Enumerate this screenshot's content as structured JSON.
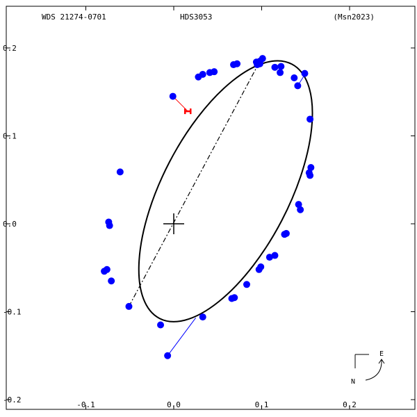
{
  "header": {
    "left": "WDS 21274-0701",
    "center": "HDS3053",
    "right": "(Msn2023)"
  },
  "compass": {
    "east_label": "E",
    "north_label": "N"
  },
  "chart_data": {
    "type": "scatter",
    "title": "",
    "xlabel": "",
    "ylabel": "",
    "xlim": [
      -0.2,
      0.28
    ],
    "ylim": [
      -0.2,
      0.2
    ],
    "x_ticks": [
      -0.1,
      0.0,
      0.1,
      0.2
    ],
    "x_tick_labels": [
      "-0.1",
      "0.0",
      "0.1",
      "0.2"
    ],
    "y_ticks": [
      0.2,
      0.1,
      0.0,
      -0.1,
      -0.2
    ],
    "y_tick_labels": [
      "0.2",
      "0.1",
      "0.0",
      "-0.1",
      "-0.2"
    ],
    "grid": false,
    "orbit_ellipse": {
      "center": [
        0.059,
        0.037
      ],
      "semi_major": 0.163,
      "semi_minor": 0.072,
      "tilt_deg": 62.5,
      "color": "#000000"
    },
    "line_of_apsides": {
      "from": [
        -0.051,
        -0.094
      ],
      "to": [
        0.097,
        0.183
      ],
      "color": "#000000"
    },
    "primary_star": [
      0.0,
      0.0
    ],
    "observations": {
      "color": "#0000ff",
      "points": [
        [
          0.101,
          0.188
        ],
        [
          0.098,
          0.185
        ],
        [
          0.094,
          0.184
        ],
        [
          0.098,
          0.182
        ],
        [
          0.115,
          0.178
        ],
        [
          0.122,
          0.179
        ],
        [
          0.121,
          0.172
        ],
        [
          0.137,
          0.166
        ],
        [
          0.149,
          0.171
        ],
        [
          0.141,
          0.157
        ],
        [
          0.155,
          0.119
        ],
        [
          0.156,
          0.064
        ],
        [
          0.154,
          0.058
        ],
        [
          0.155,
          0.055
        ],
        [
          0.142,
          0.022
        ],
        [
          0.144,
          0.016
        ],
        [
          0.128,
          -0.011
        ],
        [
          0.126,
          -0.012
        ],
        [
          0.115,
          -0.036
        ],
        [
          0.109,
          -0.038
        ],
        [
          0.099,
          -0.049
        ],
        [
          0.097,
          -0.052
        ],
        [
          0.083,
          -0.069
        ],
        [
          0.069,
          -0.084
        ],
        [
          0.066,
          -0.085
        ],
        [
          0.033,
          -0.106
        ],
        [
          -0.015,
          -0.115
        ],
        [
          -0.051,
          -0.094
        ],
        [
          -0.071,
          -0.065
        ],
        [
          -0.076,
          -0.052
        ],
        [
          -0.079,
          -0.054
        ],
        [
          -0.073,
          -0.002
        ],
        [
          -0.074,
          0.002
        ],
        [
          -0.061,
          0.059
        ],
        [
          -0.001,
          0.145
        ],
        [
          0.028,
          0.167
        ],
        [
          0.033,
          0.17
        ],
        [
          0.041,
          0.172
        ],
        [
          0.046,
          0.173
        ],
        [
          0.068,
          0.181
        ],
        [
          0.072,
          0.182
        ],
        [
          0.095,
          0.181
        ]
      ]
    },
    "residuals": [
      {
        "from": [
          -0.001,
          0.145
        ],
        "to": [
          0.016,
          0.128
        ],
        "color": "#ff0000",
        "marker": "H"
      },
      {
        "from": [
          0.025,
          -0.107
        ],
        "to": [
          -0.007,
          -0.15
        ],
        "color": "#0000ff",
        "marker": "dot"
      },
      {
        "from": [
          0.141,
          0.157
        ],
        "to": [
          0.148,
          0.168
        ],
        "color": "#0000ff",
        "marker": "none"
      }
    ]
  }
}
